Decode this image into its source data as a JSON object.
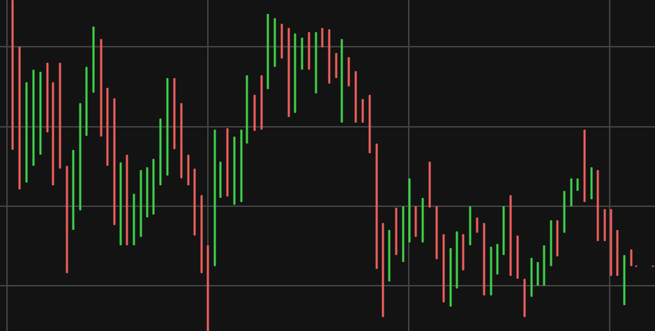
{
  "chart_data": {
    "type": "ohlc",
    "background": "#131313",
    "grid": true,
    "grid_color": "#444444",
    "up_color": "#3fd34a",
    "down_color": "#f0605d",
    "xlim": [
      0,
      939
    ],
    "ylim": [
      0,
      475
    ],
    "xticks": [
      10,
      298,
      586,
      874
    ],
    "yticks": [
      65,
      179,
      293,
      408
    ],
    "x": [
      18,
      28,
      38,
      48,
      58,
      68,
      76,
      86,
      96,
      105,
      115,
      124,
      134,
      145,
      154,
      164,
      173,
      182,
      192,
      202,
      211,
      220,
      230,
      240,
      250,
      260,
      270,
      279,
      289,
      298,
      308,
      316,
      326,
      336,
      346,
      354,
      365,
      375,
      384,
      394,
      404,
      414,
      423,
      433,
      443,
      453,
      462,
      472,
      482,
      490,
      500,
      510,
      520,
      530,
      540,
      549,
      558,
      568,
      578,
      587,
      596,
      606,
      616,
      626,
      636,
      646,
      655,
      664,
      674,
      684,
      694,
      704,
      713,
      722,
      732,
      742,
      752,
      762,
      771,
      780,
      790,
      799,
      809,
      819,
      828,
      838,
      848,
      857,
      867,
      876,
      885,
      895,
      905,
      912,
      936
    ],
    "high": [
      475,
      408,
      357,
      375,
      372,
      385,
      357,
      385,
      237,
      260,
      327,
      379,
      437,
      419,
      349,
      334,
      242,
      253,
      197,
      231,
      235,
      247,
      305,
      363,
      363,
      327,
      253,
      233,
      195,
      123,
      289,
      243,
      291,
      279,
      289,
      367,
      339,
      367,
      455,
      449,
      441,
      435,
      427,
      421,
      429,
      429,
      435,
      433,
      399,
      419,
      393,
      373,
      333,
      339,
      269,
      155,
      145,
      177,
      179,
      219,
      179,
      191,
      243,
      179,
      139,
      119,
      143,
      139,
      179,
      163,
      155,
      121,
      125,
      179,
      195,
      137,
      75,
      105,
      99,
      123,
      159,
      159,
      201,
      219,
      219,
      289,
      235,
      231,
      175,
      175,
      145,
      109,
      117,
      94,
      94
    ],
    "low": [
      260,
      203,
      213,
      237,
      253,
      285,
      209,
      233,
      83,
      145,
      173,
      280,
      342,
      279,
      237,
      152,
      123,
      123,
      123,
      135,
      163,
      167,
      209,
      223,
      261,
      219,
      209,
      137,
      83,
      0,
      93,
      191,
      193,
      181,
      185,
      269,
      287,
      289,
      347,
      379,
      391,
      307,
      313,
      375,
      375,
      341,
      407,
      355,
      363,
      299,
      351,
      299,
      299,
      255,
      89,
      20,
      71,
      109,
      99,
      127,
      135,
      127,
      177,
      103,
      41,
      35,
      61,
      87,
      123,
      141,
      51,
      51,
      81,
      109,
      79,
      75,
      20,
      49,
      65,
      65,
      93,
      107,
      141,
      179,
      201,
      185,
      189,
      129,
      129,
      79,
      79,
      37,
      93,
      92,
      92
    ],
    "direction": [
      "down",
      "down",
      "up",
      "up",
      "up",
      "down",
      "down",
      "down",
      "down",
      "up",
      "up",
      "up",
      "up",
      "down",
      "down",
      "down",
      "up",
      "down",
      "up",
      "up",
      "up",
      "up",
      "up",
      "up",
      "down",
      "down",
      "down",
      "down",
      "down",
      "down",
      "up",
      "up",
      "down",
      "up",
      "up",
      "up",
      "down",
      "down",
      "up",
      "up",
      "down",
      "down",
      "up",
      "up",
      "down",
      "up",
      "down",
      "down",
      "down",
      "up",
      "down",
      "down",
      "down",
      "down",
      "down",
      "down",
      "up",
      "down",
      "up",
      "up",
      "down",
      "up",
      "down",
      "down",
      "down",
      "up",
      "up",
      "down",
      "up",
      "down",
      "down",
      "up",
      "up",
      "up",
      "down",
      "down",
      "down",
      "up",
      "up",
      "up",
      "up",
      "down",
      "up",
      "up",
      "up",
      "down",
      "up",
      "down",
      "down",
      "down",
      "down",
      "up",
      "down",
      "down",
      "down"
    ]
  }
}
